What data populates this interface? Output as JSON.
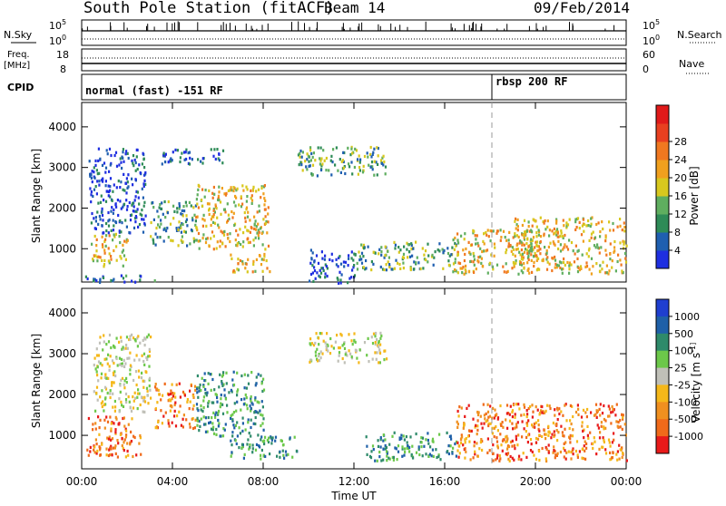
{
  "header": {
    "station": "South Pole Station (fitACF)",
    "beam": "Beam 14",
    "date": "09/Feb/2014"
  },
  "meta_panels": {
    "nsky_label": "N.Sky",
    "nsearch_label": "N.Search",
    "freq_label_1": "Freq.",
    "freq_label_2": "[MHz]",
    "nave_label": "Nave",
    "cpid_label": "CPID",
    "noise_ticks_left": [
      "10^5",
      "10^0"
    ],
    "noise_ticks_right": [
      "10^5",
      "10^0"
    ],
    "freq_ticks": [
      "18",
      "8"
    ],
    "nave_ticks": [
      "60",
      "0"
    ],
    "cpid_segments": [
      {
        "label": "normal (fast) -151 RF",
        "start_hour": 0
      },
      {
        "label": "rbsp 200 RF",
        "start_hour": 18
      }
    ]
  },
  "chart_data": [
    {
      "type": "heatmap",
      "title": "",
      "xlabel": "Time UT",
      "ylabel": "Slant Range [km]",
      "x_tick_labels": [
        "00:00",
        "04:00",
        "08:00",
        "12:00",
        "16:00",
        "20:00",
        "00:00"
      ],
      "y_tick_labels": [
        "1000",
        "2000",
        "3000",
        "4000"
      ],
      "xlim_hours": [
        0,
        24
      ],
      "ylim_km": [
        180,
        4600
      ],
      "colorbar": {
        "label": "Power [dB]",
        "ticks": [
          "4",
          "8",
          "12",
          "16",
          "20",
          "24",
          "28"
        ],
        "colors": [
          "#1f2fe0",
          "#1f5fb0",
          "#2e8b57",
          "#5fae5f",
          "#d8c81e",
          "#f0a01e",
          "#f07820",
          "#e84020",
          "#e01a1a"
        ]
      },
      "echo_regions": [
        {
          "t": [
            0.1,
            3.2
          ],
          "r": [
            200,
            380
          ],
          "level": "mixed"
        },
        {
          "t": [
            0.4,
            2.0
          ],
          "r": [
            600,
            1400
          ],
          "level": "high"
        },
        {
          "t": [
            0.3,
            2.8
          ],
          "r": [
            1400,
            3500
          ],
          "level": "low"
        },
        {
          "t": [
            3.0,
            5.0
          ],
          "r": [
            1100,
            2200
          ],
          "level": "mid"
        },
        {
          "t": [
            5.0,
            8.2
          ],
          "r": [
            1000,
            2600
          ],
          "level": "high"
        },
        {
          "t": [
            3.5,
            6.2
          ],
          "r": [
            3100,
            3500
          ],
          "level": "low"
        },
        {
          "t": [
            6.5,
            8.3
          ],
          "r": [
            450,
            900
          ],
          "level": "high"
        },
        {
          "t": [
            9.5,
            13.4
          ],
          "r": [
            2800,
            3550
          ],
          "level": "mid"
        },
        {
          "t": [
            10.0,
            12.0
          ],
          "r": [
            180,
            1000
          ],
          "level": "low"
        },
        {
          "t": [
            12.0,
            16.5
          ],
          "r": [
            500,
            1200
          ],
          "level": "mid"
        },
        {
          "t": [
            16.3,
            20.0
          ],
          "r": [
            400,
            1500
          ],
          "level": "high"
        },
        {
          "t": [
            19.0,
            24.0
          ],
          "r": [
            400,
            1800
          ],
          "level": "high"
        }
      ]
    },
    {
      "type": "heatmap",
      "title": "",
      "xlabel": "Time UT",
      "ylabel": "Slant Range [km]",
      "x_tick_labels": [
        "00:00",
        "04:00",
        "08:00",
        "12:00",
        "16:00",
        "20:00",
        "00:00"
      ],
      "y_tick_labels": [
        "1000",
        "2000",
        "3000",
        "4000"
      ],
      "xlim_hours": [
        0,
        24
      ],
      "ylim_km": [
        180,
        4600
      ],
      "colorbar": {
        "label": "Velocity [m s^-1]",
        "ticks": [
          "1000",
          "500",
          "100",
          "25",
          "-25",
          "-100",
          "-500",
          "-1000"
        ],
        "colors": [
          "#1f3fd0",
          "#1f60a8",
          "#2e8a6a",
          "#6cc84a",
          "#c0c0b8",
          "#f5b81a",
          "#f09020",
          "#f06a1a",
          "#e81a1a"
        ]
      },
      "echo_regions": [
        {
          "t": [
            0.2,
            2.6
          ],
          "r": [
            500,
            1500
          ],
          "level": "negative"
        },
        {
          "t": [
            0.5,
            3.0
          ],
          "r": [
            1600,
            3500
          ],
          "level": "near-zero"
        },
        {
          "t": [
            3.2,
            5.0
          ],
          "r": [
            1200,
            2300
          ],
          "level": "negative"
        },
        {
          "t": [
            5.0,
            8.0
          ],
          "r": [
            1000,
            2600
          ],
          "level": "positive"
        },
        {
          "t": [
            6.5,
            9.5
          ],
          "r": [
            450,
            1000
          ],
          "level": "positive"
        },
        {
          "t": [
            10.0,
            13.4
          ],
          "r": [
            2800,
            3550
          ],
          "level": "near-zero"
        },
        {
          "t": [
            12.5,
            16.5
          ],
          "r": [
            400,
            1100
          ],
          "level": "positive"
        },
        {
          "t": [
            16.5,
            24.0
          ],
          "r": [
            400,
            1800
          ],
          "level": "negative"
        }
      ]
    }
  ]
}
